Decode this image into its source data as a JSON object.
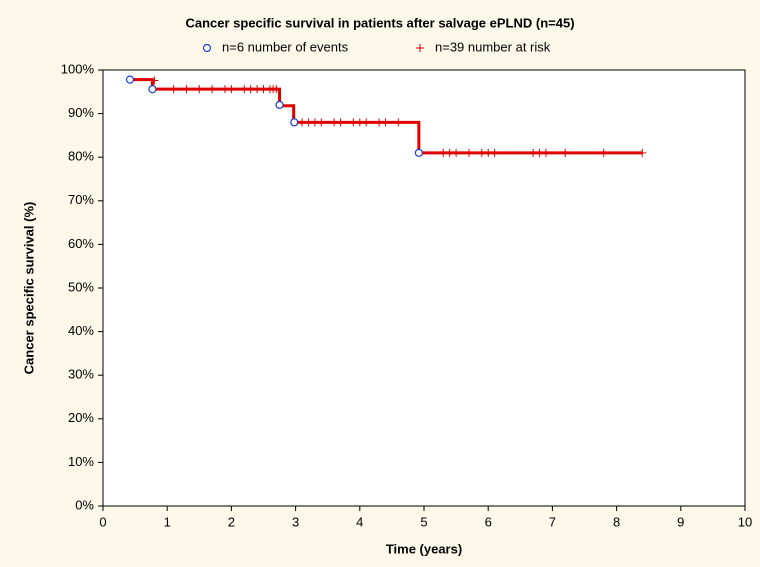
{
  "chart_data": {
    "type": "line",
    "title": "Cancer specific survival in patients after salvage ePLND (n=45)",
    "xlabel": "Time (years)",
    "ylabel": "Cancer specific survival (%)",
    "xlim": [
      0,
      10
    ],
    "ylim": [
      0,
      100
    ],
    "xticks": [
      0,
      1,
      2,
      3,
      4,
      5,
      6,
      7,
      8,
      9,
      10
    ],
    "yticks": [
      {
        "value": 0,
        "label": "0%"
      },
      {
        "value": 10,
        "label": "10%"
      },
      {
        "value": 20,
        "label": "20%"
      },
      {
        "value": 30,
        "label": "30%"
      },
      {
        "value": 40,
        "label": "40%"
      },
      {
        "value": 50,
        "label": "50%"
      },
      {
        "value": 60,
        "label": "60%"
      },
      {
        "value": 70,
        "label": "70%"
      },
      {
        "value": 80,
        "label": "80%"
      },
      {
        "value": 90,
        "label": "90%"
      },
      {
        "value": 100,
        "label": "100%"
      }
    ],
    "grid": false,
    "series": [
      {
        "color": "#e00000",
        "marker": "line",
        "x": [
          0.4,
          0.77,
          0.77,
          2.75,
          2.75,
          2.97,
          2.97,
          4.92,
          4.92,
          8.4
        ],
        "values": [
          97.8,
          97.8,
          95.6,
          95.6,
          91.8,
          91.8,
          88,
          88,
          81,
          81
        ]
      },
      {
        "name": "n=6 number of events",
        "color": "#1a3dcc",
        "marker": "o",
        "x": [
          0.42,
          0.77,
          2.75,
          2.98,
          4.92
        ],
        "values": [
          97.8,
          95.6,
          92,
          88,
          81
        ]
      },
      {
        "name": "n=39 number at risk",
        "color": "#e00000",
        "marker": "+",
        "x": [
          0.8,
          1.1,
          1.3,
          1.5,
          1.7,
          1.9,
          2.0,
          2.2,
          2.3,
          2.4,
          2.5,
          2.6,
          2.65,
          2.7,
          3.1,
          3.2,
          3.3,
          3.4,
          3.6,
          3.7,
          3.9,
          4.0,
          4.1,
          4.3,
          4.4,
          4.6,
          5.3,
          5.4,
          5.5,
          5.7,
          5.9,
          6.0,
          6.1,
          6.7,
          6.8,
          6.9,
          7.2,
          7.8,
          8.4
        ],
        "values": [
          97.6,
          95.6,
          95.6,
          95.6,
          95.6,
          95.6,
          95.6,
          95.6,
          95.6,
          95.6,
          95.6,
          95.6,
          95.6,
          95.6,
          88,
          88,
          88,
          88,
          88,
          88,
          88,
          88,
          88,
          88,
          88,
          88,
          81,
          81,
          81,
          81,
          81,
          81,
          81,
          81,
          81,
          81,
          81,
          81,
          81
        ]
      }
    ]
  }
}
